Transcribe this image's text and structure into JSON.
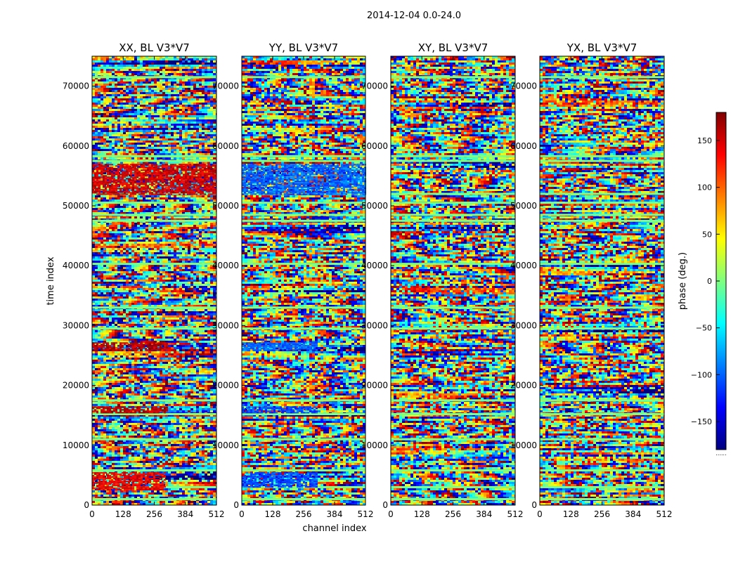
{
  "figure": {
    "suptitle": "2014-12-04 0.0-24.0"
  },
  "chart_data": [
    {
      "type": "heatmap",
      "title": "XX, BL V3*V7",
      "xlabel": "",
      "ylabel": "time index",
      "xlim": [
        0,
        512
      ],
      "ylim": [
        0,
        75000
      ],
      "x_ticks": [
        0,
        128,
        256,
        384,
        512
      ],
      "y_ticks": [
        0,
        10000,
        20000,
        30000,
        40000,
        50000,
        60000,
        70000
      ],
      "dominant_phase_bands": [
        {
          "y_range": [
            2500,
            5500
          ],
          "x_range": [
            0,
            300
          ],
          "phase_deg": 140
        },
        {
          "y_range": [
            15500,
            16500
          ],
          "x_range": [
            0,
            310
          ],
          "phase_deg": 160
        },
        {
          "y_range": [
            26000,
            27200
          ],
          "x_range": [
            0,
            310
          ],
          "phase_deg": 160
        },
        {
          "y_range": [
            52000,
            57000
          ],
          "x_range": [
            0,
            512
          ],
          "phase_deg": 150
        }
      ]
    },
    {
      "type": "heatmap",
      "title": "YY, BL V3*V7",
      "xlabel": "channel index",
      "ylabel": "",
      "xlim": [
        0,
        512
      ],
      "ylim": [
        0,
        75000
      ],
      "x_ticks": [
        0,
        128,
        256,
        384,
        512
      ],
      "y_ticks": [
        0,
        10000,
        20000,
        30000,
        40000,
        50000,
        60000,
        70000
      ],
      "dominant_phase_bands": [
        {
          "y_range": [
            3000,
            5500
          ],
          "x_range": [
            0,
            310
          ],
          "phase_deg": -110
        },
        {
          "y_range": [
            15500,
            16500
          ],
          "x_range": [
            0,
            310
          ],
          "phase_deg": -110
        },
        {
          "y_range": [
            26000,
            27200
          ],
          "x_range": [
            0,
            310
          ],
          "phase_deg": -100
        },
        {
          "y_range": [
            52000,
            57000
          ],
          "x_range": [
            0,
            512
          ],
          "phase_deg": -100
        }
      ]
    },
    {
      "type": "heatmap",
      "title": "XY, BL V3*V7",
      "xlabel": "",
      "ylabel": "",
      "xlim": [
        0,
        512
      ],
      "ylim": [
        0,
        75000
      ],
      "x_ticks": [
        0,
        128,
        256,
        384,
        512
      ],
      "y_ticks": [
        0,
        10000,
        20000,
        30000,
        40000,
        50000,
        60000,
        70000
      ],
      "dominant_phase_bands": []
    },
    {
      "type": "heatmap",
      "title": "YX, BL V3*V7",
      "xlabel": "",
      "ylabel": "",
      "xlim": [
        0,
        512
      ],
      "ylim": [
        0,
        75000
      ],
      "x_ticks": [
        0,
        128,
        256,
        384,
        512
      ],
      "y_ticks": [
        0,
        10000,
        20000,
        30000,
        40000,
        50000,
        60000,
        70000
      ],
      "dominant_phase_bands": []
    }
  ],
  "colorbar": {
    "label": "phase (deg.)",
    "range": [
      -180,
      180
    ],
    "ticks": [
      150,
      100,
      50,
      0,
      -50,
      -100,
      -150
    ],
    "tick_labels": [
      "150",
      "100",
      "50",
      "0",
      "−50",
      "−100",
      "−150"
    ],
    "colormap": "jet",
    "colormap_stops": [
      "#00007f",
      "#0000ff",
      "#007fff",
      "#00ffff",
      "#7fff7f",
      "#ffff00",
      "#ff7f00",
      "#ff0000",
      "#7f0000"
    ],
    "below_text": "......"
  },
  "flat_band_times": [
    1000,
    3000,
    5800,
    11000,
    15200,
    17500,
    29500,
    33000,
    40300,
    47500,
    48500,
    50500,
    52000,
    57500,
    58300,
    71500
  ]
}
